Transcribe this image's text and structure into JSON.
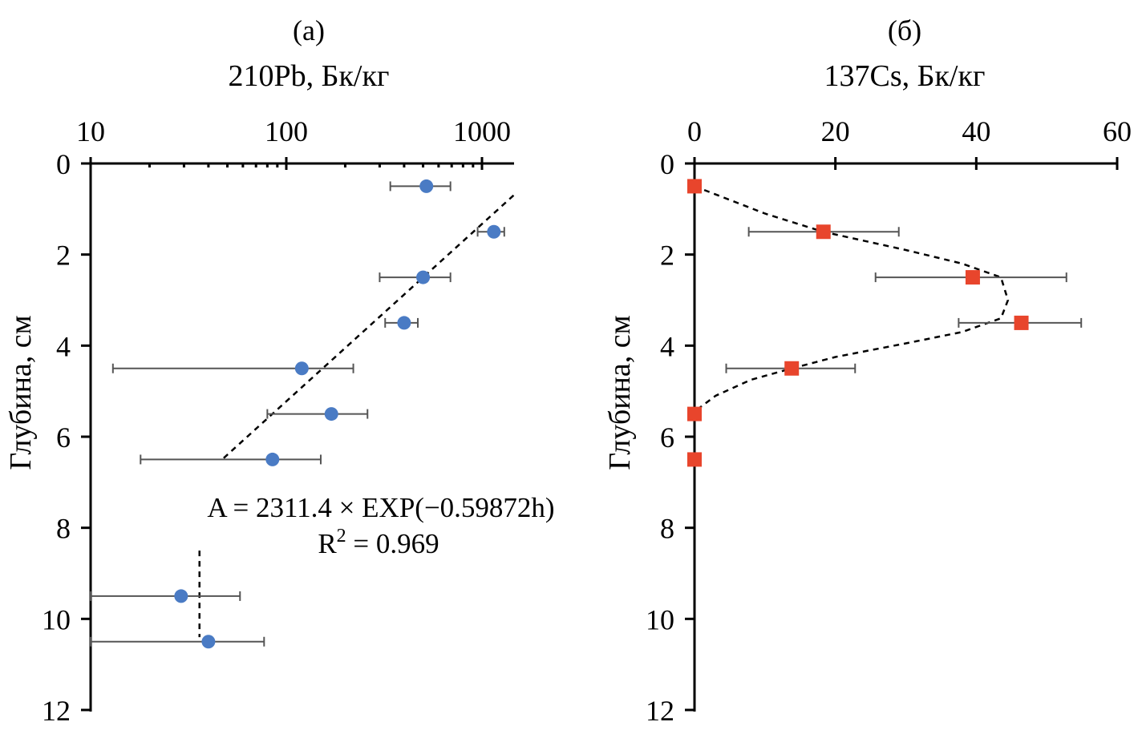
{
  "chart_data": [
    {
      "type": "scatter",
      "panel_label": "(а)",
      "title": "210Pb, Бк/кг",
      "ylabel": "Глубина, см",
      "xscale": "log",
      "xlim": [
        10,
        1400
      ],
      "ylim": [
        12,
        0
      ],
      "x_ticks": [
        "10",
        "100",
        "1000"
      ],
      "x_tick_values": [
        10,
        100,
        1000
      ],
      "y_ticks": [
        "0",
        "2",
        "4",
        "6",
        "8",
        "10",
        "12"
      ],
      "y_tick_values": [
        0,
        2,
        4,
        6,
        8,
        10,
        12
      ],
      "x_axis_position": "top",
      "marker": "circle",
      "marker_color": "#4a7bc4",
      "points": [
        {
          "x": 520,
          "y": 0.5,
          "xerr_low": 340,
          "xerr_high": 690
        },
        {
          "x": 1150,
          "y": 1.5,
          "xerr_low": 950,
          "xerr_high": 1300
        },
        {
          "x": 500,
          "y": 2.5,
          "xerr_low": 300,
          "xerr_high": 690
        },
        {
          "x": 400,
          "y": 3.5,
          "xerr_low": 320,
          "xerr_high": 470
        },
        {
          "x": 120,
          "y": 4.5,
          "xerr_low": 13,
          "xerr_high": 220
        },
        {
          "x": 170,
          "y": 5.5,
          "xerr_low": 80,
          "xerr_high": 260
        },
        {
          "x": 85,
          "y": 6.5,
          "xerr_low": 18,
          "xerr_high": 150
        },
        {
          "x": 29,
          "y": 9.5,
          "xerr_low": 10,
          "xerr_high": 58
        },
        {
          "x": 40,
          "y": 10.5,
          "xerr_low": 10,
          "xerr_high": 77
        }
      ],
      "fit_curve": {
        "x": [
          1450,
          47
        ],
        "y": [
          0.7,
          6.5
        ]
      },
      "deep_line": {
        "x": [
          36,
          36
        ],
        "y": [
          8.5,
          10.4
        ]
      },
      "equation": {
        "main": "A = 2311.4 × EXP(−0.59872h)",
        "r_prefix": "R",
        "r_sup": "2",
        "r_value": " = 0.969"
      }
    },
    {
      "type": "scatter",
      "panel_label": "(б)",
      "title": "137Cs, Бк/кг",
      "ylabel": "Глубина, см",
      "xscale": "linear",
      "xlim": [
        0,
        60
      ],
      "ylim": [
        12,
        0
      ],
      "x_ticks": [
        "0",
        "20",
        "40",
        "60"
      ],
      "x_tick_values": [
        0,
        20,
        40,
        60
      ],
      "y_ticks": [
        "0",
        "2",
        "4",
        "6",
        "8",
        "10",
        "12"
      ],
      "y_tick_values": [
        0,
        2,
        4,
        6,
        8,
        10,
        12
      ],
      "x_axis_position": "top",
      "marker": "square",
      "marker_color": "#e8452c",
      "points": [
        {
          "x": 0,
          "y": 0.5,
          "xerr_low": 0,
          "xerr_high": 0
        },
        {
          "x": 18.3,
          "y": 1.5,
          "xerr_low": 7.7,
          "xerr_high": 29
        },
        {
          "x": 39.5,
          "y": 2.5,
          "xerr_low": 25.7,
          "xerr_high": 52.8
        },
        {
          "x": 46.4,
          "y": 3.5,
          "xerr_low": 37.5,
          "xerr_high": 54.9
        },
        {
          "x": 13.8,
          "y": 4.5,
          "xerr_low": 4.5,
          "xerr_high": 22.8
        },
        {
          "x": 0,
          "y": 5.5,
          "xerr_low": 0,
          "xerr_high": 0
        },
        {
          "x": 0,
          "y": 6.5,
          "xerr_low": 0,
          "xerr_high": 0
        }
      ],
      "fit_curve": {
        "x": [
          0,
          10,
          18.3,
          30,
          38,
          43.5,
          44.5,
          43.5,
          38,
          30,
          20,
          13.8,
          8,
          3,
          0
        ],
        "y": [
          0.5,
          1.1,
          1.5,
          1.9,
          2.2,
          2.5,
          3.0,
          3.4,
          3.7,
          3.95,
          4.25,
          4.5,
          4.75,
          5.1,
          5.45
        ]
      }
    }
  ]
}
